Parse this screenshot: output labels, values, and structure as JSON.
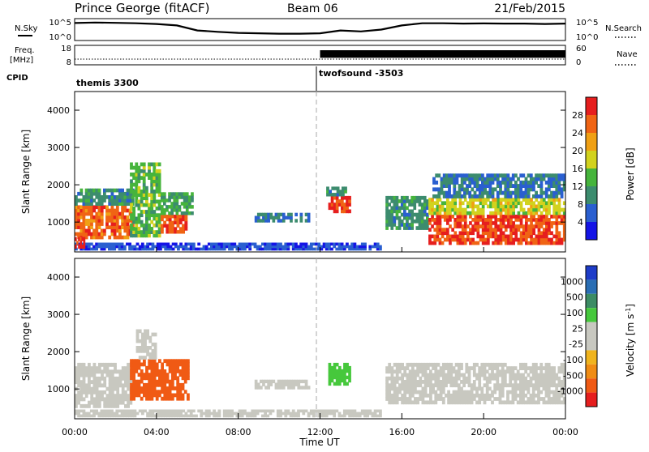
{
  "header": {
    "station": "Prince George (fitACF)",
    "beam": "Beam 06",
    "date": "21/Feb/2015"
  },
  "colors": {
    "power": [
      "#1414e6",
      "#2a5fd0",
      "#3c8c6e",
      "#46b43c",
      "#d2d21e",
      "#f0a014",
      "#f06414",
      "#e61e1e"
    ],
    "velocity": [
      "#e61e1e",
      "#f05a14",
      "#f08c14",
      "#f0b41e",
      "#c8c8c0",
      "#c8c8c0",
      "#46c83c",
      "#3c8c64",
      "#2a6eb4",
      "#1e3cc8"
    ]
  },
  "chart_data": [
    {
      "type": "line",
      "panel": "summary-nsky",
      "left_label": "N.Sky",
      "right_label": "N.Search",
      "left_ticks": [
        "10^5",
        "10^0"
      ],
      "right_ticks": [
        "10^5",
        "10^0"
      ],
      "series": [
        {
          "x": [
            0,
            1,
            2,
            3,
            4,
            5,
            6,
            7,
            8,
            9,
            10,
            11,
            12,
            13,
            14,
            15,
            16,
            17,
            18,
            19,
            20,
            21,
            22,
            23,
            24
          ],
          "y": [
            0.85,
            0.88,
            0.86,
            0.84,
            0.8,
            0.72,
            0.45,
            0.38,
            0.32,
            0.3,
            0.28,
            0.28,
            0.3,
            0.45,
            0.4,
            0.5,
            0.72,
            0.84,
            0.84,
            0.82,
            0.83,
            0.82,
            0.82,
            0.8,
            0.82
          ]
        }
      ]
    },
    {
      "type": "line",
      "panel": "summary-freq",
      "left_label": "Freq.",
      "left_unit": "[MHz]",
      "right_label": "Nave",
      "left_ticks": [
        "18",
        "8"
      ],
      "right_ticks": [
        "60",
        "0"
      ],
      "freq": {
        "x": [
          0,
          12,
          24
        ],
        "y": [
          10.5,
          10.5,
          10.5
        ]
      },
      "nave_step": {
        "x_change": 12,
        "before": 20,
        "after": 48
      }
    },
    {
      "type": "table",
      "panel": "cpid",
      "label": "CPID",
      "segments": [
        {
          "start": 0,
          "end": 12,
          "name": "themis 3300"
        },
        {
          "start": 12,
          "end": 24,
          "name": "twofsound -3503"
        }
      ]
    },
    {
      "type": "heatmap",
      "panel": "power",
      "ylabel": "Slant Range [km]",
      "ylim": [
        200,
        4500
      ],
      "yticks": [
        1000,
        2000,
        3000,
        4000
      ],
      "xlim": [
        0,
        24
      ],
      "colorbar_label": "Power [dB]",
      "colorbar_ticks": [
        4,
        8,
        12,
        16,
        20,
        24,
        28
      ],
      "colorbar_range": [
        0,
        32
      ],
      "blobs": [
        {
          "x0": 0.0,
          "x1": 2.9,
          "y0": 550,
          "y1": 1450,
          "v": 26
        },
        {
          "x0": 0.0,
          "x1": 2.9,
          "y0": 1450,
          "y1": 1900,
          "v": 10
        },
        {
          "x0": 2.7,
          "x1": 4.2,
          "y0": 600,
          "y1": 2600,
          "v": 14
        },
        {
          "x0": 4.2,
          "x1": 5.5,
          "y0": 700,
          "y1": 1200,
          "v": 27
        },
        {
          "x0": 4.2,
          "x1": 5.8,
          "y0": 1200,
          "y1": 1800,
          "v": 12
        },
        {
          "x0": 8.8,
          "x1": 11.5,
          "y0": 1000,
          "y1": 1250,
          "v": 8
        },
        {
          "x0": 12.4,
          "x1": 13.5,
          "y0": 1250,
          "y1": 1700,
          "v": 28
        },
        {
          "x0": 12.3,
          "x1": 13.3,
          "y0": 1700,
          "y1": 1950,
          "v": 10
        },
        {
          "x0": 15.2,
          "x1": 17.3,
          "y0": 800,
          "y1": 1700,
          "v": 10
        },
        {
          "x0": 17.3,
          "x1": 24.0,
          "y0": 400,
          "y1": 1200,
          "v": 28
        },
        {
          "x0": 17.3,
          "x1": 24.0,
          "y0": 1200,
          "y1": 1650,
          "v": 18
        },
        {
          "x0": 17.5,
          "x1": 24.0,
          "y0": 1650,
          "y1": 2300,
          "v": 8
        },
        {
          "x0": 0.0,
          "x1": 15.0,
          "y0": 250,
          "y1": 450,
          "v": 5
        },
        {
          "x0": 0.0,
          "x1": 0.5,
          "y0": 300,
          "y1": 600,
          "v": 30
        }
      ]
    },
    {
      "type": "heatmap",
      "panel": "velocity",
      "ylabel": "Slant Range [km]",
      "ylim": [
        200,
        4500
      ],
      "yticks": [
        1000,
        2000,
        3000,
        4000
      ],
      "xlim": [
        0,
        24
      ],
      "xlabel": "Time UT",
      "xticks": [
        "00:00",
        "04:00",
        "08:00",
        "12:00",
        "16:00",
        "20:00",
        "00:00"
      ],
      "colorbar_label": "Velocity [m s^-1]",
      "colorbar_ticks": [
        "1000",
        "500",
        "100",
        "25",
        "-25",
        "-100",
        "-500",
        "-1000"
      ],
      "blobs": [
        {
          "x0": 0.0,
          "x1": 2.8,
          "y0": 500,
          "y1": 1700,
          "v": 0
        },
        {
          "x0": 2.7,
          "x1": 5.6,
          "y0": 700,
          "y1": 1800,
          "v": -400
        },
        {
          "x0": 3.0,
          "x1": 4.0,
          "y0": 1800,
          "y1": 2600,
          "v": 0
        },
        {
          "x0": 8.8,
          "x1": 11.5,
          "y0": 1000,
          "y1": 1250,
          "v": 0
        },
        {
          "x0": 12.4,
          "x1": 13.5,
          "y0": 1100,
          "y1": 1700,
          "v": 80
        },
        {
          "x0": 15.2,
          "x1": 24.0,
          "y0": 600,
          "y1": 1700,
          "v": 0
        },
        {
          "x0": 0.0,
          "x1": 15.0,
          "y0": 250,
          "y1": 450,
          "v": 0
        }
      ]
    }
  ]
}
